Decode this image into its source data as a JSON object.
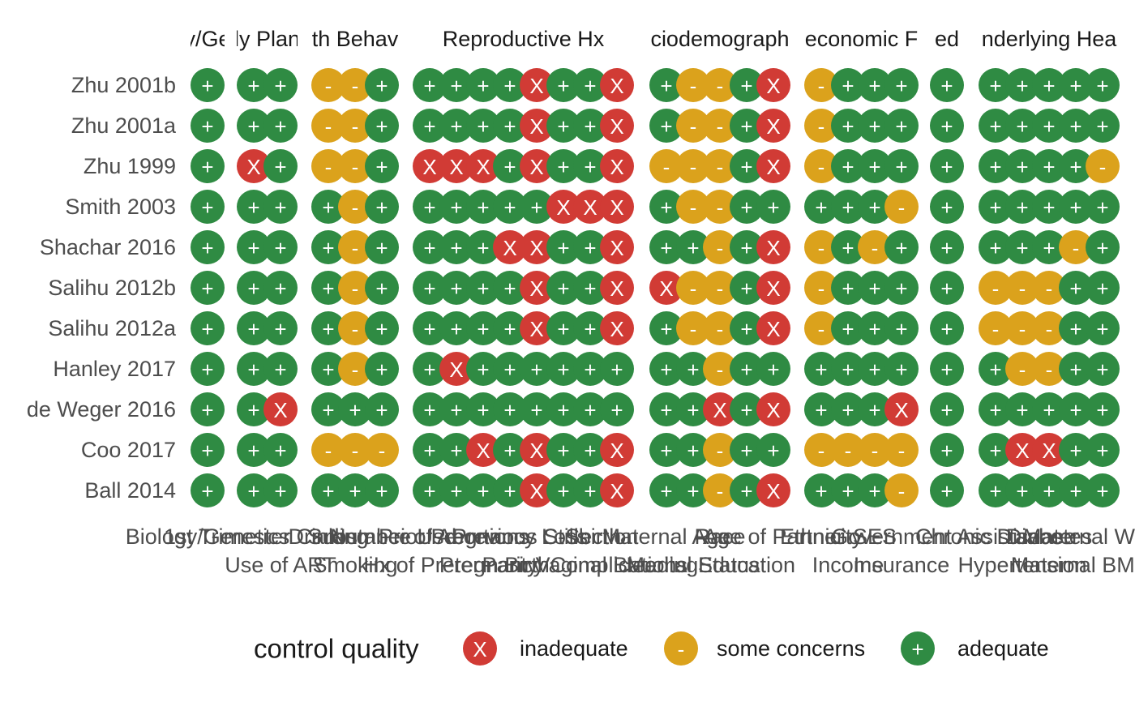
{
  "chart_data": {
    "type": "heatmap",
    "title": "",
    "xlabel": "",
    "ylabel": "",
    "studies": [
      "Zhu 2001b",
      "Zhu 2001a",
      "Zhu 1999",
      "Smith 2003",
      "Shachar 2016",
      "Salihu 2012b",
      "Salihu 2012a",
      "Hanley 2017",
      "de Weger 2016",
      "Coo 2017",
      "Ball 2014"
    ],
    "facets": [
      {
        "title": "y/Ge",
        "title_full": "Pregnancy/Gestation",
        "columns": [
          "Biology/Genetics"
        ],
        "ratings": [
          [
            "+"
          ],
          [
            "+"
          ],
          [
            "+"
          ],
          [
            "+"
          ],
          [
            "+"
          ],
          [
            "+"
          ],
          [
            "+"
          ],
          [
            "+"
          ],
          [
            "+"
          ],
          [
            "+"
          ],
          [
            "+"
          ]
        ]
      },
      {
        "title": "ly Plan",
        "title_full": "Family Planning",
        "columns": [
          "1st Trimester Care",
          "Use of ART"
        ],
        "ratings": [
          [
            "+",
            "+"
          ],
          [
            "+",
            "+"
          ],
          [
            "X",
            "+"
          ],
          [
            "+",
            "+"
          ],
          [
            "+",
            "+"
          ],
          [
            "+",
            "+"
          ],
          [
            "+",
            "+"
          ],
          [
            "+",
            "+"
          ],
          [
            "+",
            "X"
          ],
          [
            "+",
            "+"
          ],
          [
            "+",
            "+"
          ]
        ]
      },
      {
        "title": "th Behav",
        "title_full": "Health Behavior",
        "columns": [
          "Drinking",
          "Smoking",
          "Substance Use"
        ],
        "ratings": [
          [
            "-",
            "-",
            "+"
          ],
          [
            "-",
            "-",
            "+"
          ],
          [
            "-",
            "-",
            "+"
          ],
          [
            "+",
            "-",
            "+"
          ],
          [
            "+",
            "-",
            "+"
          ],
          [
            "+",
            "-",
            "+"
          ],
          [
            "+",
            "-",
            "+"
          ],
          [
            "+",
            "-",
            "+"
          ],
          [
            "+",
            "+",
            "+"
          ],
          [
            "-",
            "-",
            "-"
          ],
          [
            "+",
            "+",
            "+"
          ]
        ]
      },
      {
        "title": "Reproductive Hx",
        "title_full": "Reproductive Hx",
        "columns": [
          "Number of Abortions",
          "Hx of Preterm Birth",
          "Prior Pregnancy Loss",
          "Parity",
          "Previous Stillbirth",
          "Pregnancy Complications",
          "C-Section",
          "Vaginal Bleeding"
        ],
        "ratings": [
          [
            "+",
            "+",
            "+",
            "+",
            "X",
            "+",
            "+",
            "X"
          ],
          [
            "+",
            "+",
            "+",
            "+",
            "X",
            "+",
            "+",
            "X"
          ],
          [
            "X",
            "X",
            "X",
            "+",
            "X",
            "+",
            "+",
            "X"
          ],
          [
            "+",
            "+",
            "+",
            "+",
            "+",
            "X",
            "X",
            "X"
          ],
          [
            "+",
            "+",
            "+",
            "X",
            "X",
            "+",
            "+",
            "X"
          ],
          [
            "+",
            "+",
            "+",
            "+",
            "X",
            "+",
            "+",
            "X"
          ],
          [
            "+",
            "+",
            "+",
            "+",
            "X",
            "+",
            "+",
            "X"
          ],
          [
            "+",
            "X",
            "+",
            "+",
            "+",
            "+",
            "+",
            "+"
          ],
          [
            "+",
            "+",
            "+",
            "+",
            "+",
            "+",
            "+",
            "+"
          ],
          [
            "+",
            "+",
            "X",
            "+",
            "X",
            "+",
            "+",
            "X"
          ],
          [
            "+",
            "+",
            "+",
            "+",
            "X",
            "+",
            "+",
            "X"
          ]
        ]
      },
      {
        "title": "ciodemograph",
        "title_full": "Sociodemographics",
        "columns": [
          "Maternal Age",
          "Marital Status",
          "Race",
          "Education",
          "Age of Partner"
        ],
        "ratings": [
          [
            "+",
            "-",
            "-",
            "+",
            "X"
          ],
          [
            "+",
            "-",
            "-",
            "+",
            "X"
          ],
          [
            "-",
            "-",
            "-",
            "+",
            "X"
          ],
          [
            "+",
            "-",
            "-",
            "+",
            "+"
          ],
          [
            "+",
            "+",
            "-",
            "+",
            "X"
          ],
          [
            "X",
            "-",
            "-",
            "+",
            "X"
          ],
          [
            "+",
            "-",
            "-",
            "+",
            "X"
          ],
          [
            "+",
            "+",
            "-",
            "+",
            "+"
          ],
          [
            "+",
            "+",
            "X",
            "+",
            "X"
          ],
          [
            "+",
            "+",
            "-",
            "+",
            "+"
          ],
          [
            "+",
            "+",
            "-",
            "+",
            "X"
          ]
        ]
      },
      {
        "title": "economic F",
        "title_full": "Socioeconomic Factors",
        "columns": [
          "Ethnicity",
          "Income",
          "SES",
          "Insurance"
        ],
        "ratings": [
          [
            "-",
            "+",
            "+",
            "+"
          ],
          [
            "-",
            "+",
            "+",
            "+"
          ],
          [
            "-",
            "+",
            "+",
            "+"
          ],
          [
            "+",
            "+",
            "+",
            "-"
          ],
          [
            "-",
            "+",
            "-",
            "+"
          ],
          [
            "-",
            "+",
            "+",
            "+"
          ],
          [
            "-",
            "+",
            "+",
            "+"
          ],
          [
            "+",
            "+",
            "+",
            "+"
          ],
          [
            "+",
            "+",
            "+",
            "X"
          ],
          [
            "-",
            "-",
            "-",
            "-"
          ],
          [
            "+",
            "+",
            "+",
            "-"
          ]
        ]
      },
      {
        "title": "ed",
        "title_full": "Fed Assistance",
        "columns": [
          "Government Assistance"
        ],
        "ratings": [
          [
            "+"
          ],
          [
            "+"
          ],
          [
            "+"
          ],
          [
            "+"
          ],
          [
            "+"
          ],
          [
            "+"
          ],
          [
            "+"
          ],
          [
            "+"
          ],
          [
            "+"
          ],
          [
            "+"
          ],
          [
            "+"
          ]
        ]
      },
      {
        "title": "nderlying Hea",
        "title_full": "Underlying Health",
        "columns": [
          "Chronic Disease",
          "Hypertension",
          "Diabetes",
          "Maternal BMI",
          "Maternal Weight"
        ],
        "ratings": [
          [
            "+",
            "+",
            "+",
            "+",
            "+"
          ],
          [
            "+",
            "+",
            "+",
            "+",
            "+"
          ],
          [
            "+",
            "+",
            "+",
            "+",
            "-"
          ],
          [
            "+",
            "+",
            "+",
            "+",
            "+"
          ],
          [
            "+",
            "+",
            "+",
            "-",
            "+"
          ],
          [
            "-",
            "-",
            "-",
            "+",
            "+"
          ],
          [
            "-",
            "-",
            "-",
            "+",
            "+"
          ],
          [
            "+",
            "-",
            "-",
            "+",
            "+"
          ],
          [
            "+",
            "+",
            "+",
            "+",
            "+"
          ],
          [
            "+",
            "X",
            "X",
            "+",
            "+"
          ],
          [
            "+",
            "+",
            "+",
            "+",
            "+"
          ]
        ]
      }
    ],
    "legend": {
      "title": "control quality",
      "items": [
        {
          "symbol": "X",
          "label": "inadequate",
          "color": "#d13b35"
        },
        {
          "symbol": "-",
          "label": "some concerns",
          "color": "#dba21c"
        },
        {
          "symbol": "+",
          "label": "adequate",
          "color": "#2f8b43"
        }
      ],
      "placement": "bottom"
    },
    "colors": {
      "X": "#d13b35",
      "-": "#dba21c",
      "+": "#2f8b43"
    }
  }
}
